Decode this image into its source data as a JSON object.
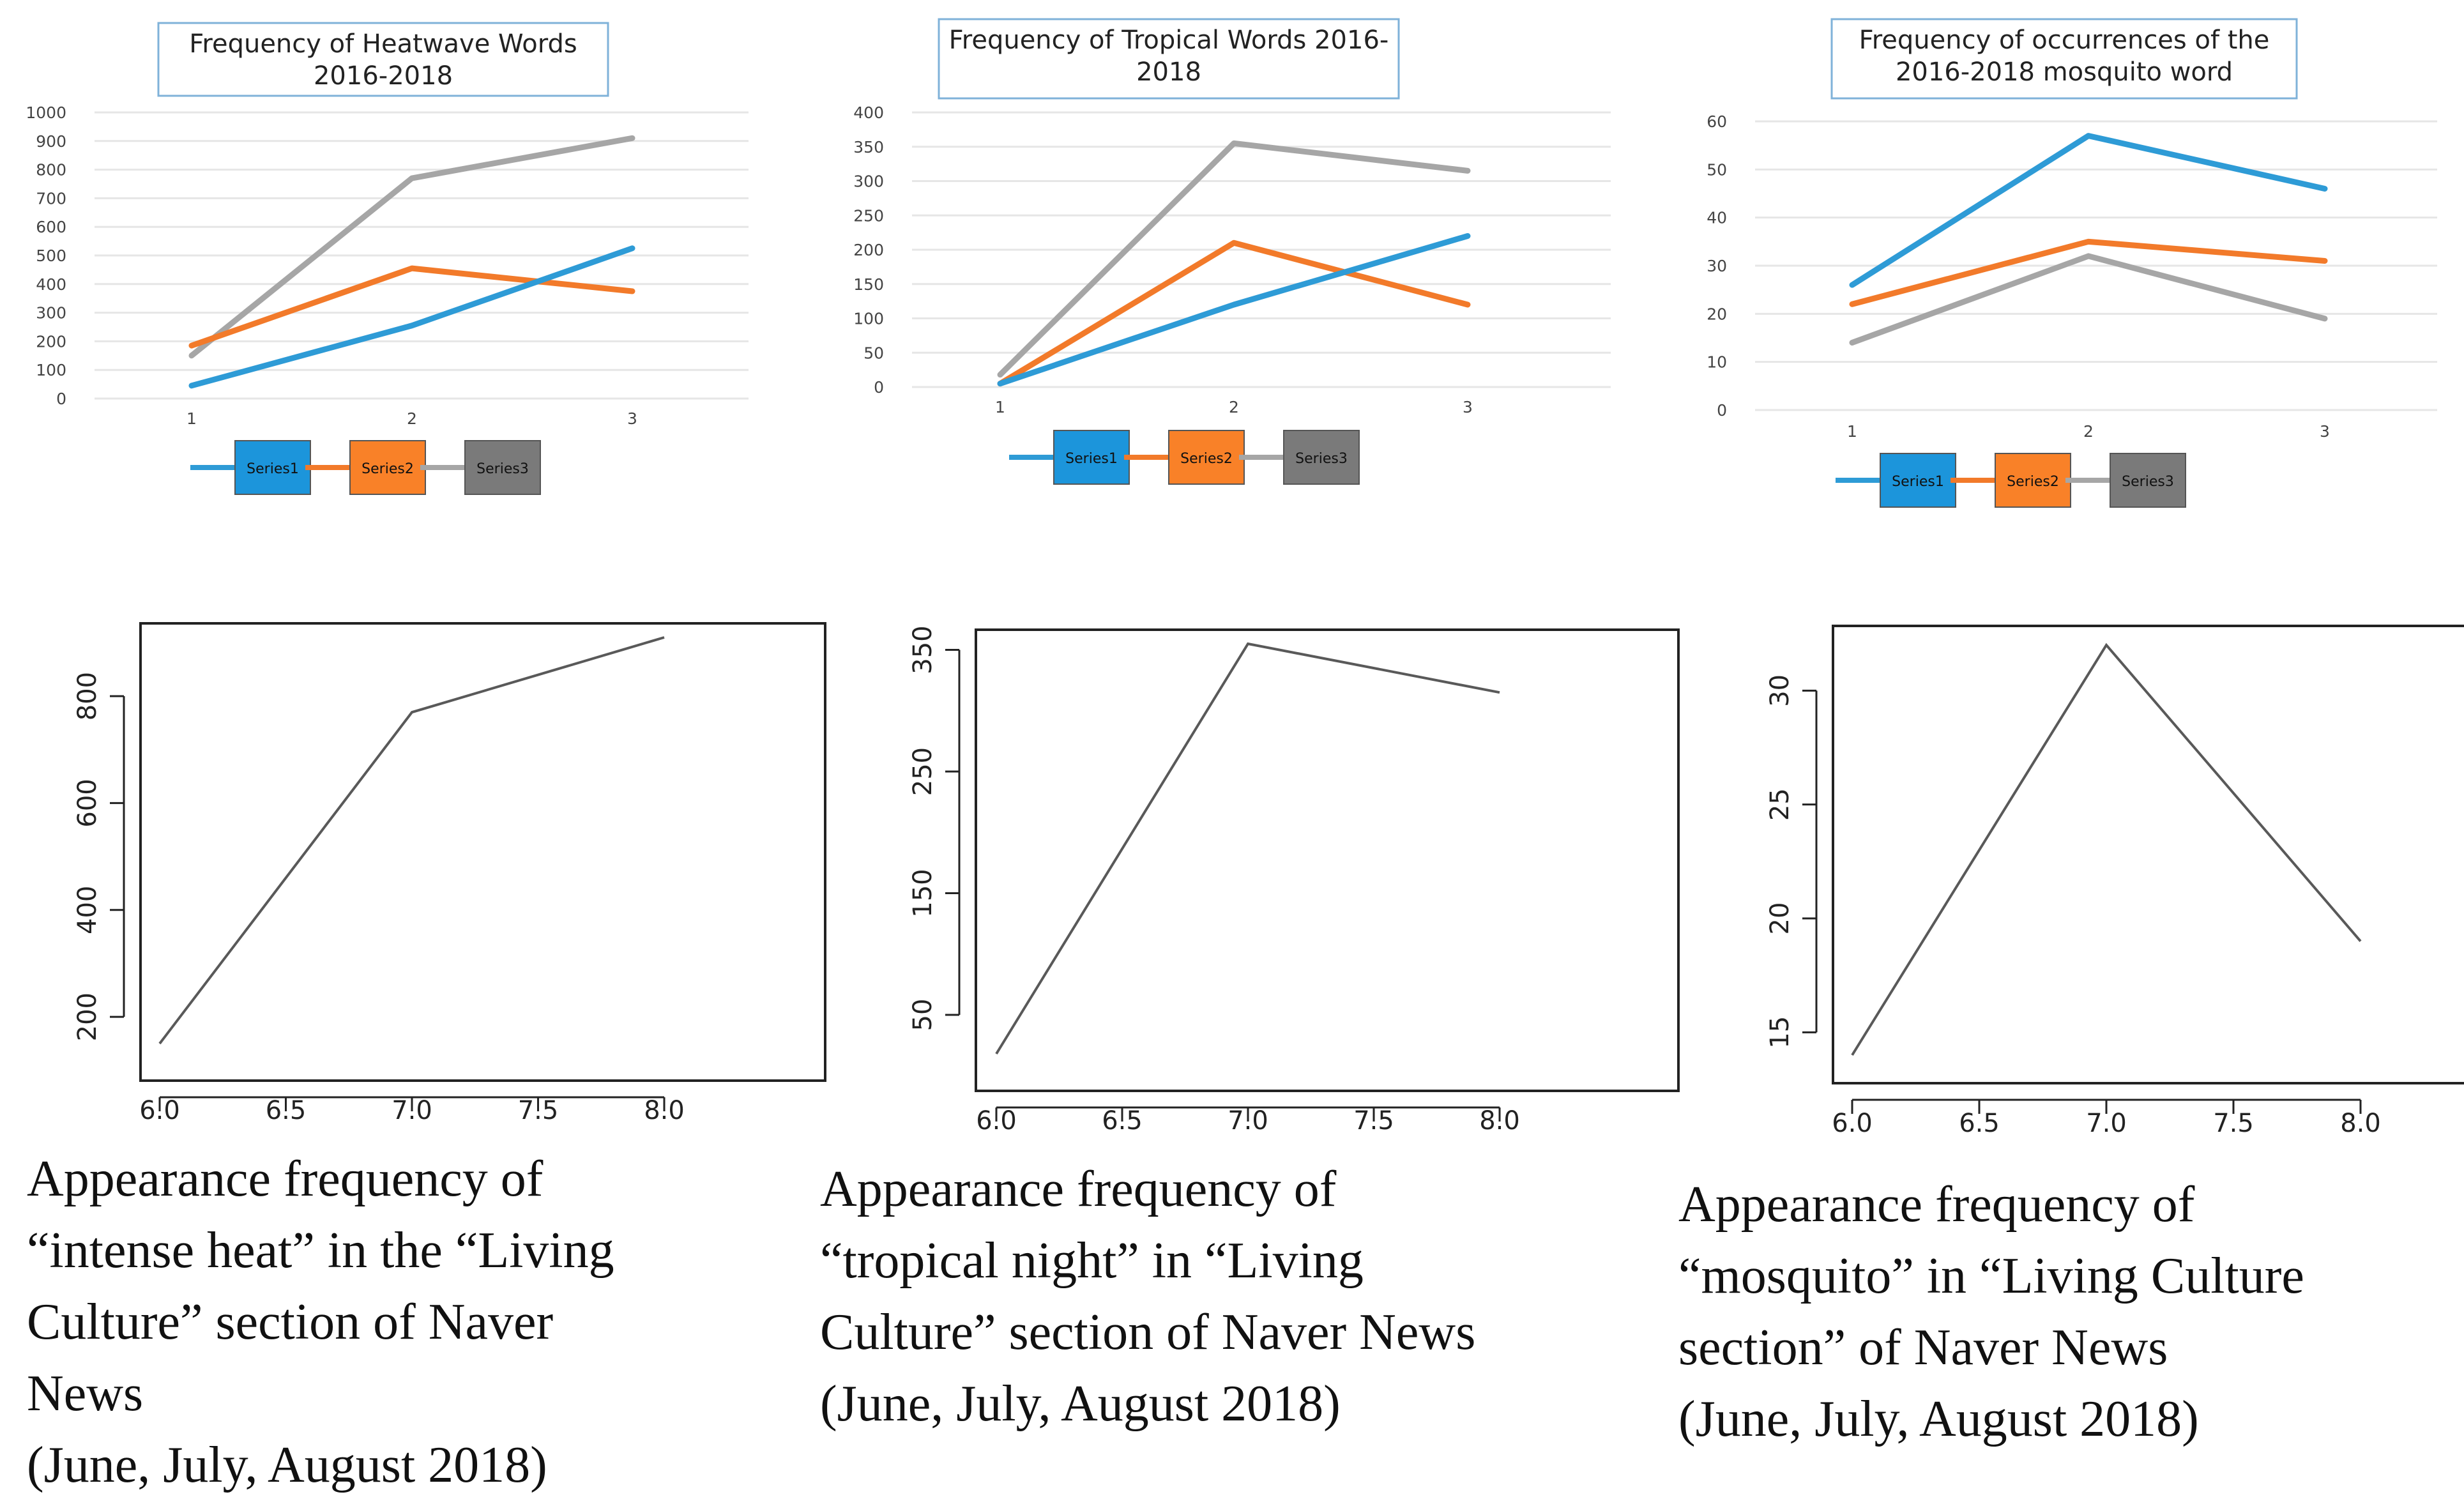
{
  "colors": {
    "series1": "#2E9BD6",
    "series2": "#F27A2A",
    "series3": "#A6A6A6",
    "legend_series1": "#1C95DB",
    "legend_series2": "#F98128",
    "legend_series3": "#7A7A7A",
    "plot_line": "#595959",
    "grid": "#E6E6E6",
    "title_border": "#7FB2D9"
  },
  "chart_data": [
    {
      "type": "line",
      "style": "excel",
      "title_lines": [
        "Frequency of Heatwave Words",
        "2016-2018"
      ],
      "categories": [
        "1",
        "2",
        "3"
      ],
      "ylim": [
        0,
        1000
      ],
      "yticks": [
        "0",
        "100",
        "200",
        "300",
        "400",
        "500",
        "600",
        "700",
        "800",
        "900",
        "1000"
      ],
      "series": [
        {
          "name": "Series1",
          "values": [
            45,
            255,
            525
          ]
        },
        {
          "name": "Series2",
          "values": [
            185,
            455,
            375
          ]
        },
        {
          "name": "Series3",
          "values": [
            150,
            770,
            910
          ]
        }
      ],
      "legend": "bottom"
    },
    {
      "type": "line",
      "style": "excel",
      "title_lines": [
        "Frequency of Tropical Words 2016-",
        "2018"
      ],
      "categories": [
        "1",
        "2",
        "3"
      ],
      "ylim": [
        0,
        400
      ],
      "yticks": [
        "0",
        "50",
        "100",
        "150",
        "200",
        "250",
        "300",
        "350",
        "400"
      ],
      "series": [
        {
          "name": "Series1",
          "values": [
            5,
            120,
            220
          ]
        },
        {
          "name": "Series2",
          "values": [
            5,
            210,
            120
          ]
        },
        {
          "name": "Series3",
          "values": [
            18,
            355,
            315
          ]
        }
      ],
      "legend": "bottom"
    },
    {
      "type": "line",
      "style": "excel",
      "title_lines": [
        "Frequency of occurrences of the",
        "2016-2018 mosquito word"
      ],
      "categories": [
        "1",
        "2",
        "3"
      ],
      "ylim": [
        0,
        60
      ],
      "yticks": [
        "0",
        "10",
        "20",
        "30",
        "40",
        "50",
        "60"
      ],
      "series": [
        {
          "name": "Series1",
          "values": [
            26,
            57,
            46
          ]
        },
        {
          "name": "Series2",
          "values": [
            22,
            35,
            31
          ]
        },
        {
          "name": "Series3",
          "values": [
            14,
            32,
            19
          ]
        }
      ],
      "legend": "bottom"
    },
    {
      "type": "line",
      "style": "r-plot",
      "x": [
        6.0,
        7.0,
        8.0
      ],
      "y": [
        150,
        770,
        910
      ],
      "xlim": [
        6.0,
        8.0
      ],
      "ylim": [
        150,
        910
      ],
      "xticks": [
        "6.0",
        "6.5",
        "7.0",
        "7.5",
        "8.0"
      ],
      "yticks": [
        "200",
        "400",
        "600",
        "800"
      ],
      "caption_lines": [
        "Appearance frequency of",
        "“intense heat” in the “Living",
        "Culture” section of Naver",
        "News",
        "(June, July, August 2018)"
      ]
    },
    {
      "type": "line",
      "style": "r-plot",
      "x": [
        6.0,
        7.0,
        8.0
      ],
      "y": [
        18,
        355,
        315
      ],
      "xlim": [
        6.0,
        8.0
      ],
      "ylim": [
        18,
        355
      ],
      "xticks": [
        "6.0",
        "6.5",
        "7.0",
        "7.5",
        "8.0"
      ],
      "yticks": [
        "50",
        "150",
        "250",
        "350"
      ],
      "caption_lines": [
        "Appearance frequency of",
        "“tropical night” in “Living",
        "Culture” section of Naver News",
        "(June, July, August 2018)"
      ]
    },
    {
      "type": "line",
      "style": "r-plot",
      "x": [
        6.0,
        7.0,
        8.0
      ],
      "y": [
        14,
        32,
        19
      ],
      "xlim": [
        6.0,
        8.0
      ],
      "ylim": [
        14,
        32
      ],
      "xticks": [
        "6.0",
        "6.5",
        "7.0",
        "7.5",
        "8.0"
      ],
      "yticks": [
        "15",
        "20",
        "25",
        "30"
      ],
      "caption_lines": [
        "Appearance frequency of",
        "“mosquito” in “Living Culture",
        "section” of Naver News",
        "(June, July, August 2018)"
      ]
    }
  ]
}
